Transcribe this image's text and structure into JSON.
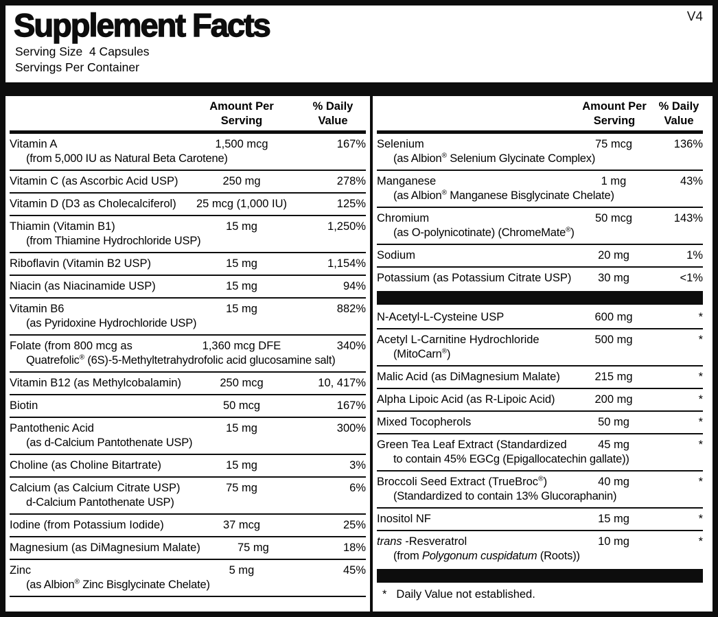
{
  "version": "V4",
  "title": "Supplement Facts",
  "serving_size": "Serving Size  4 Capsules",
  "servings_per_container": "Servings Per Container",
  "header": {
    "amount_line1": "Amount Per",
    "amount_line2": "Serving",
    "dv_line1": "% Daily",
    "dv_line2": "Value"
  },
  "footnote": {
    "marker": "*",
    "text": "Daily Value not established."
  },
  "columns": {
    "left": {
      "rows": [
        {
          "name": "Vitamin A",
          "sub": "(from 5,000 IU as Natural Beta Carotene)",
          "amount": "1,500 mcg",
          "dv": "167%"
        },
        {
          "name": "Vitamin C (as Ascorbic Acid USP)",
          "amount": "250 mg",
          "dv": "278%"
        },
        {
          "name": "Vitamin D (D3 as Cholecalciferol)",
          "amount": "25 mcg (1,000 IU)",
          "dv": "125%"
        },
        {
          "name": "Thiamin (Vitamin B1)",
          "sub": "(from Thiamine Hydrochloride USP)",
          "amount": "15 mg",
          "dv": "1,250%"
        },
        {
          "name": "Riboflavin (Vitamin B2 USP)",
          "amount": "15 mg",
          "dv": "1,154%"
        },
        {
          "name": "Niacin (as Niacinamide USP)",
          "amount": "15 mg",
          "dv": "94%"
        },
        {
          "name": "Vitamin B6",
          "sub": "(as Pyridoxine Hydrochloride USP)",
          "amount": "15 mg",
          "dv": "882%"
        },
        {
          "name": "Folate (from 800 mcg as",
          "sub": "Quatrefolic® (6S)-5-Methyltetrahydrofolic acid glucosamine salt)",
          "amount": "1,360 mcg DFE",
          "dv": "340%"
        },
        {
          "name": "Vitamin B12 (as Methylcobalamin)",
          "amount": "250 mcg",
          "dv": "10, 417%"
        },
        {
          "name": "Biotin",
          "amount": "50 mcg",
          "dv": "167%"
        },
        {
          "name": "Pantothenic Acid",
          "sub": "(as d-Calcium Pantothenate USP)",
          "amount": "15 mg",
          "dv": "300%"
        },
        {
          "name": "Choline (as Choline Bitartrate)",
          "amount": "15 mg",
          "dv": "3%"
        },
        {
          "name": "Calcium (as Calcium Citrate USP)",
          "sub": "d-Calcium Pantothenate USP)",
          "amount": "75 mg",
          "dv": "6%"
        },
        {
          "name": "Iodine (from Potassium Iodide)",
          "amount": "37 mcg",
          "dv": "25%"
        },
        {
          "name": "Magnesium (as DiMagnesium Malate)",
          "amount": "75 mg",
          "dv": "18%"
        },
        {
          "name": "Zinc",
          "sub": "(as Albion® Zinc Bisglycinate Chelate)",
          "amount": "5 mg",
          "dv": "45%"
        }
      ]
    },
    "right": {
      "rows": [
        {
          "name": "Selenium",
          "sub": "(as Albion® Selenium Glycinate Complex)",
          "amount": "75 mcg",
          "dv": "136%"
        },
        {
          "name": "Manganese",
          "sub": "(as Albion® Manganese Bisglycinate Chelate)",
          "amount": "1 mg",
          "dv": "43%"
        },
        {
          "name": "Chromium",
          "sub": "(as O-polynicotinate) (ChromeMate®)",
          "amount": "50 mcg",
          "dv": "143%"
        },
        {
          "name": "Sodium",
          "amount": "20 mg",
          "dv": "1%"
        },
        {
          "name": "Potassium (as Potassium Citrate USP)",
          "amount": "30 mg",
          "dv": "<1%"
        },
        {
          "divider": true
        },
        {
          "name": "N-Acetyl-L-Cysteine USP",
          "amount": "600 mg",
          "dv": "*"
        },
        {
          "name": "Acetyl L-Carnitine Hydrochloride",
          "sub": "(MitoCarn®)",
          "amount": "500 mg",
          "dv": "*"
        },
        {
          "name": "Malic Acid (as DiMagnesium Malate)",
          "amount": "215 mg",
          "dv": "*"
        },
        {
          "name": "Alpha Lipoic Acid (as R-Lipoic Acid)",
          "amount": "200 mg",
          "dv": "*"
        },
        {
          "name": "Mixed Tocopherols",
          "amount": "50 mg",
          "dv": "*"
        },
        {
          "name": "Green Tea Leaf Extract (Standardized",
          "sub": "to contain 45% EGCg (Epigallocatechin gallate))",
          "amount": "45 mg",
          "dv": "*"
        },
        {
          "name": "Broccoli Seed Extract (TrueBroc®)",
          "sub": "(Standardized to contain 13% Glucoraphanin)",
          "amount": "40 mg",
          "dv": "*"
        },
        {
          "name": "Inositol NF",
          "amount": "15 mg",
          "dv": "*"
        },
        {
          "name": "_trans_ -Resveratrol",
          "sub": "(from _Polygonum cuspidatum_ (Roots))",
          "amount": "10 mg",
          "dv": "*"
        },
        {
          "divider": true
        }
      ]
    }
  }
}
